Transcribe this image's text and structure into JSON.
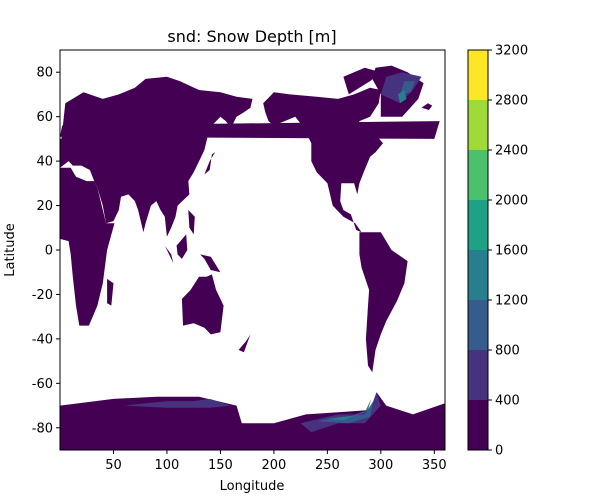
{
  "chart_data": {
    "type": "heatmap",
    "title": "snd: Snow Depth [m]",
    "xlabel": "Longitude",
    "ylabel": "Latitude",
    "xlim": [
      0,
      360
    ],
    "ylim": [
      -90,
      90
    ],
    "x_ticks": [
      50,
      100,
      150,
      200,
      250,
      300,
      350
    ],
    "y_ticks": [
      -80,
      -60,
      -40,
      -20,
      0,
      20,
      40,
      60,
      80
    ],
    "colorbar": {
      "levels": [
        0,
        400,
        800,
        1200,
        1600,
        2000,
        2400,
        2800,
        3200
      ],
      "tick_labels": [
        "0",
        "400",
        "800",
        "1200",
        "1600",
        "2000",
        "2400",
        "2800",
        "3200"
      ],
      "colors": [
        "#440154",
        "#46327e",
        "#365c8d",
        "#277f8e",
        "#1fa187",
        "#4ac16d",
        "#a0da39",
        "#fde725"
      ]
    },
    "ocean_color": "#ffffff",
    "grid": false,
    "legend": "colorbar-right"
  }
}
